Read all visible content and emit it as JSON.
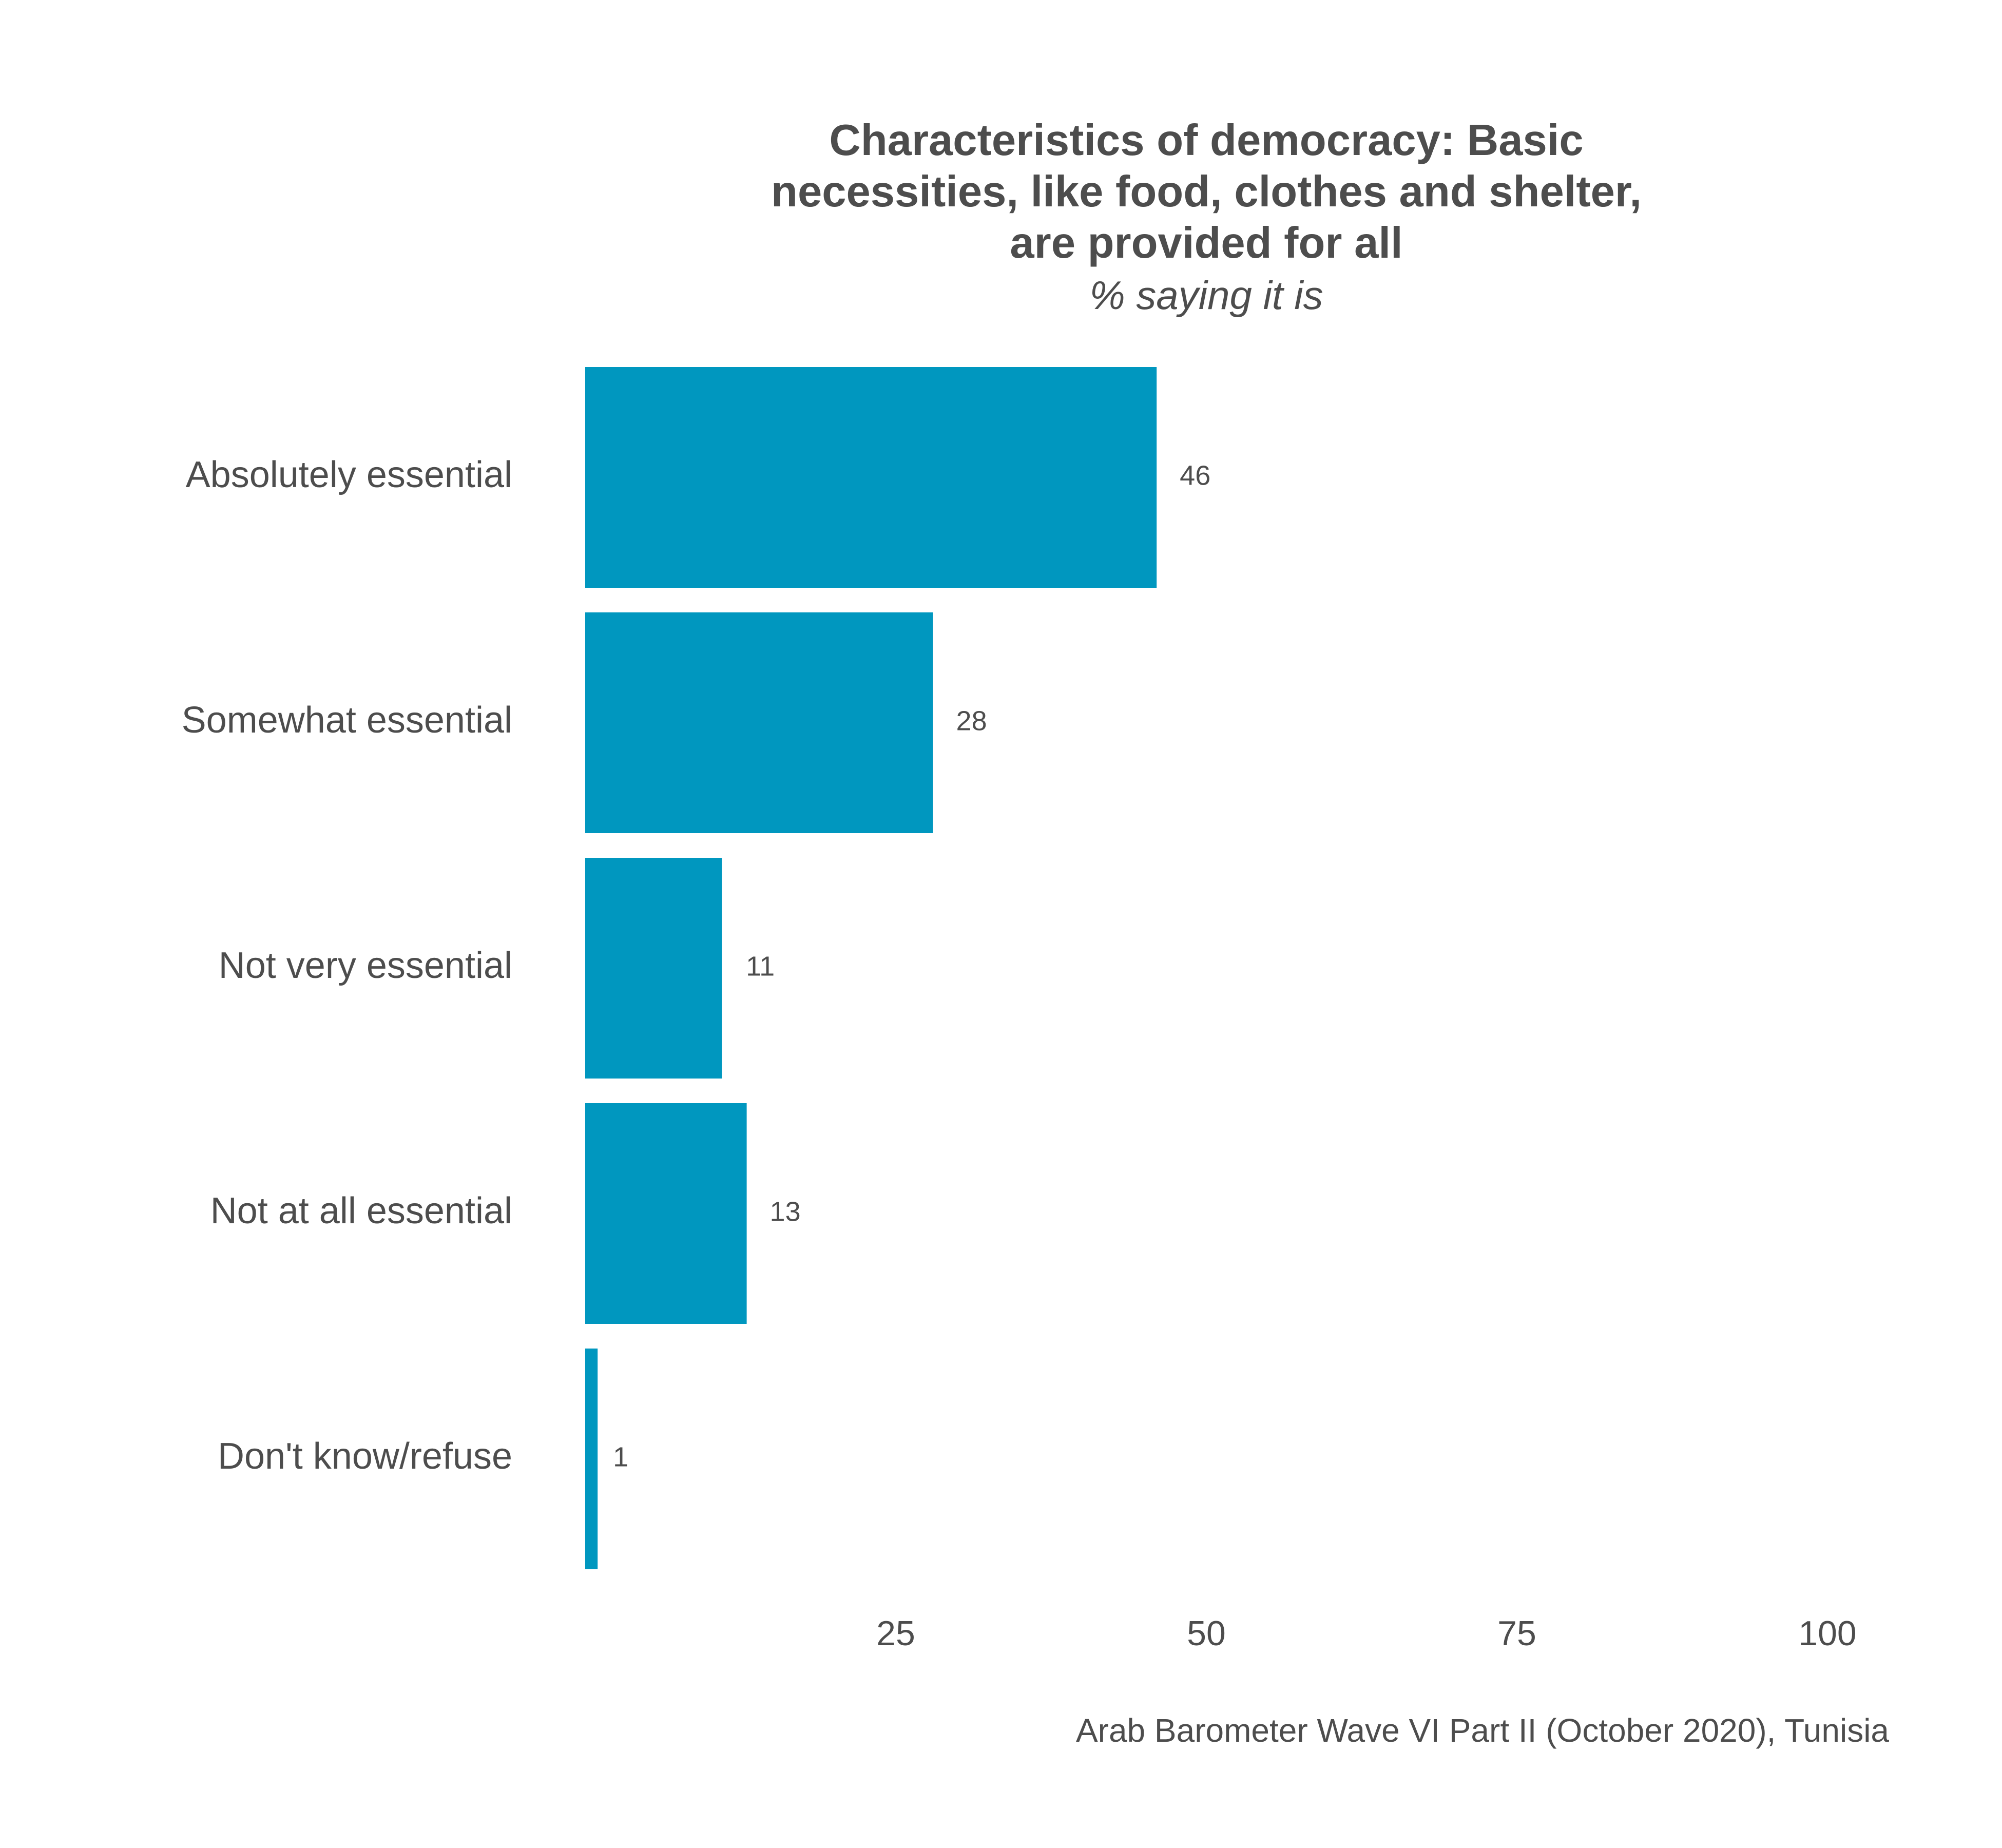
{
  "chart_data": {
    "type": "bar",
    "orientation": "horizontal",
    "title_lines": [
      "Characteristics of democracy: Basic",
      "necessities, like food, clothes and shelter,",
      "are provided for all"
    ],
    "subtitle": "% saying it is",
    "categories": [
      "Absolutely essential",
      "Somewhat essential",
      "Not very essential",
      "Not at all essential",
      "Don't know/refuse"
    ],
    "values": [
      46,
      28,
      11,
      13,
      1
    ],
    "value_labels": [
      "46",
      "28",
      "11",
      "13",
      "1"
    ],
    "xlim": [
      0,
      100
    ],
    "xticks": [
      25,
      50,
      75,
      100
    ],
    "xtick_labels": [
      "25",
      "50",
      "75",
      "100"
    ],
    "bar_color": "#0097bf",
    "text_color": "#4d4d4d",
    "grid": false,
    "legend": "none",
    "caption": "Arab Barometer Wave VI Part II (October 2020), Tunisia"
  }
}
